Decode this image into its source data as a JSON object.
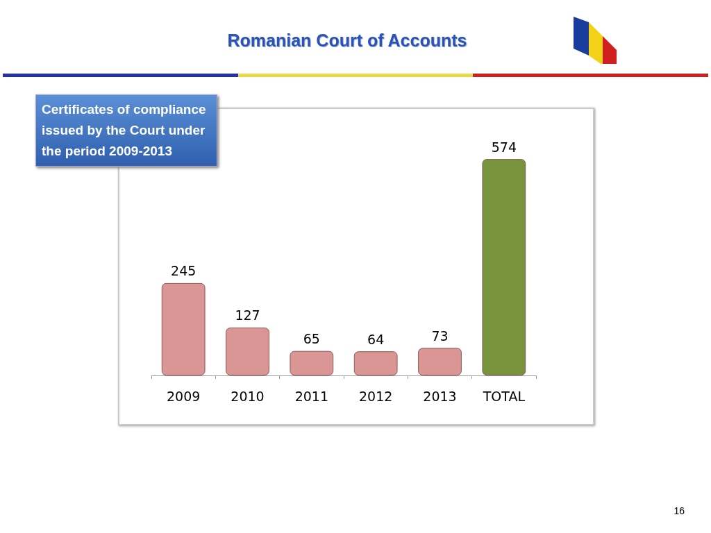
{
  "chart_data": {
    "type": "bar",
    "title": "Romanian Court of Accounts",
    "subtitle": "Certificates of compliance issued by the Court under the period 2009-2013",
    "categories": [
      "2009",
      "2010",
      "2011",
      "2012",
      "2013",
      "TOTAL"
    ],
    "values": [
      245,
      127,
      65,
      64,
      73,
      574
    ],
    "colors": [
      "#d99694",
      "#d99694",
      "#d99694",
      "#d99694",
      "#d99694",
      "#77933c"
    ],
    "data_labels": true,
    "annotations": [
      "16"
    ]
  }
}
